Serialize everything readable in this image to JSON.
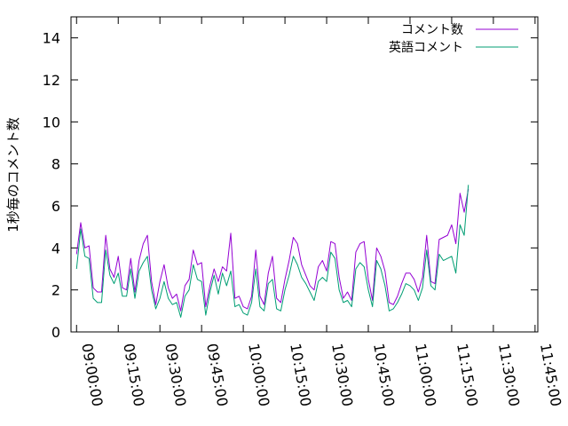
{
  "chart_data": {
    "type": "line",
    "title": "",
    "xlabel": "",
    "ylabel": "1秒毎のコメント数",
    "x_unit": "minutes after 09:00",
    "xlim": [
      "08:58:00",
      "11:46:00"
    ],
    "ylim": [
      0,
      15
    ],
    "grid": false,
    "legend_position": "top-right",
    "x_ticks": [
      "09:00:00",
      "09:15:00",
      "09:30:00",
      "09:45:00",
      "10:00:00",
      "10:15:00",
      "10:30:00",
      "10:45:00",
      "11:00:00",
      "11:15:00",
      "11:30:00",
      "11:45:00"
    ],
    "y_ticks": [
      "0",
      "2",
      "4",
      "6",
      "8",
      "10",
      "12",
      "14"
    ],
    "colors": {
      "comments": "#9400d3",
      "english": "#009e73"
    },
    "series": [
      {
        "name": "コメント数",
        "color": "#9400d3",
        "x_step_minutes": 1.5,
        "values": [
          3.7,
          5.2,
          4.0,
          4.1,
          2.1,
          1.9,
          1.9,
          4.6,
          3.0,
          2.6,
          3.6,
          2.1,
          2.0,
          3.5,
          1.9,
          3.4,
          4.2,
          4.6,
          2.4,
          1.3,
          2.4,
          3.2,
          2.1,
          1.6,
          1.8,
          1.0,
          2.2,
          2.5,
          3.9,
          3.2,
          3.3,
          1.2,
          2.2,
          3.0,
          2.4,
          3.1,
          2.9,
          4.7,
          1.6,
          1.7,
          1.2,
          1.1,
          1.7,
          3.9,
          1.7,
          1.3,
          2.8,
          3.6,
          1.6,
          1.4,
          2.5,
          3.4,
          4.5,
          4.2,
          3.2,
          2.7,
          2.2,
          2.0,
          3.1,
          3.4,
          2.9,
          4.3,
          4.2,
          2.6,
          1.6,
          1.9,
          1.5,
          3.8,
          4.2,
          4.3,
          2.5,
          1.5,
          4.0,
          3.6,
          2.9,
          1.4,
          1.3,
          1.7,
          2.3,
          2.8,
          2.8,
          2.5,
          1.9,
          2.6,
          4.6,
          2.4,
          2.3,
          4.4,
          4.5,
          4.6,
          5.1,
          4.2,
          6.6,
          5.7,
          6.8
        ]
      },
      {
        "name": "英語コメント",
        "color": "#009e73",
        "x_step_minutes": 1.5,
        "values": [
          3.0,
          4.9,
          3.6,
          3.5,
          1.6,
          1.4,
          1.4,
          3.9,
          2.7,
          2.3,
          2.8,
          1.7,
          1.7,
          3.0,
          1.6,
          2.9,
          3.3,
          3.6,
          2.0,
          1.1,
          1.6,
          2.4,
          1.6,
          1.3,
          1.4,
          0.7,
          1.7,
          2.0,
          3.2,
          2.5,
          2.4,
          0.8,
          1.9,
          2.7,
          1.8,
          2.8,
          2.2,
          2.9,
          1.2,
          1.3,
          0.9,
          0.8,
          1.4,
          3.0,
          1.2,
          1.0,
          2.3,
          2.5,
          1.1,
          1.0,
          2.0,
          2.7,
          3.6,
          3.2,
          2.6,
          2.3,
          1.9,
          1.5,
          2.4,
          2.6,
          2.4,
          3.8,
          3.5,
          2.0,
          1.4,
          1.5,
          1.2,
          3.0,
          3.3,
          3.1,
          2.0,
          1.2,
          3.4,
          3.0,
          2.2,
          1.0,
          1.1,
          1.4,
          1.8,
          2.3,
          2.2,
          2.0,
          1.5,
          2.1,
          3.9,
          2.2,
          2.0,
          3.7,
          3.4,
          3.5,
          3.6,
          2.8,
          5.1,
          4.6,
          7.0
        ]
      }
    ]
  }
}
